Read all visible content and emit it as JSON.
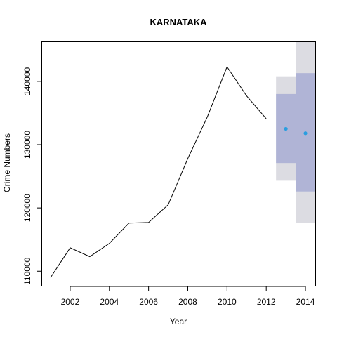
{
  "chart_data": {
    "type": "line",
    "title": "KARNATAKA",
    "xlabel": "Year",
    "ylabel": "Crime Numbers",
    "xlim": [
      2000.57,
      2014.5
    ],
    "ylim": [
      107700,
      146200
    ],
    "x_ticks": [
      2002,
      2004,
      2006,
      2008,
      2010,
      2012,
      2014
    ],
    "x_tick_labels": [
      "2002",
      "2004",
      "2006",
      "2008",
      "2010",
      "2012",
      "2014"
    ],
    "y_ticks": [
      110000,
      120000,
      130000,
      140000
    ],
    "y_tick_labels": [
      "110000",
      "120000",
      "130000",
      "140000"
    ],
    "grid": false,
    "series": [
      {
        "x": [
          2001,
          2002,
          2003,
          2004,
          2005,
          2006,
          2007,
          2008,
          2009,
          2010,
          2011,
          2012
        ],
        "values": [
          109000,
          113700,
          112300,
          114400,
          117600,
          117700,
          120500,
          127800,
          134400,
          142300,
          137700,
          134100
        ],
        "color": "#000000"
      }
    ],
    "forecast": {
      "x": [
        2013,
        2014
      ],
      "point": [
        132500,
        131800
      ],
      "lower_80": [
        127100,
        122600
      ],
      "upper_80": [
        138000,
        141300
      ],
      "lower_95": [
        124300,
        117600
      ],
      "upper_95": [
        140800,
        146200
      ],
      "point_color": "#2a9ee0",
      "band_80_color": "#b0b4d6",
      "band_95_color": "#dcdce2"
    }
  }
}
